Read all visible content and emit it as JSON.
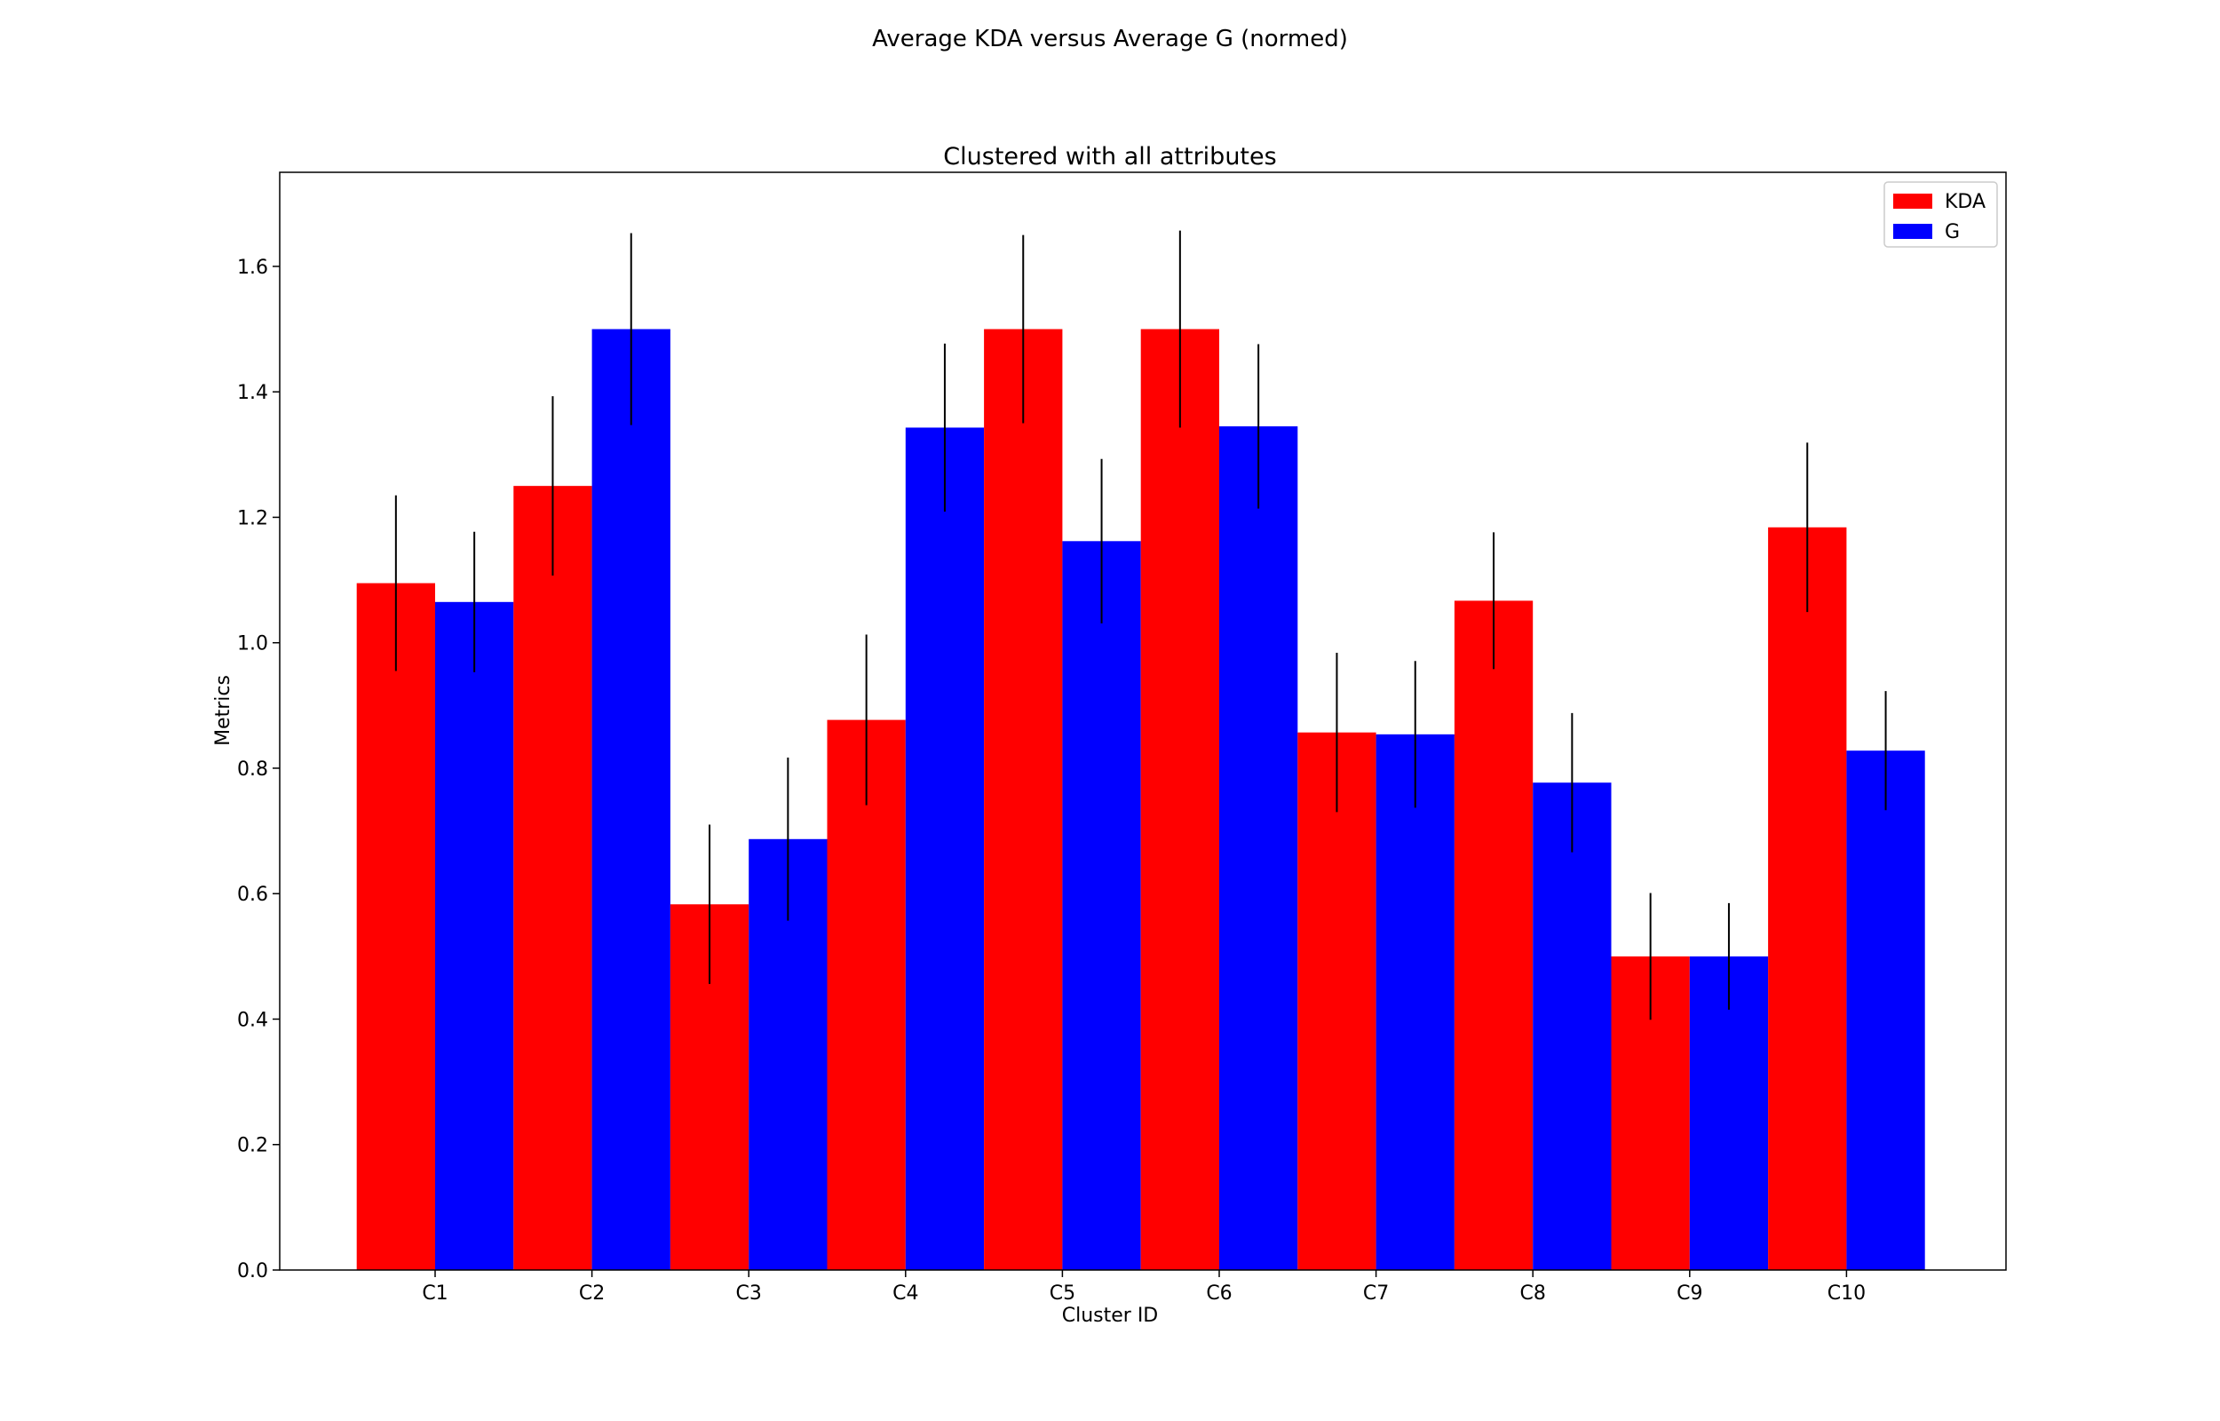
{
  "figure": {
    "suptitle": "Average KDA versus Average G (normed)"
  },
  "chart_data": {
    "type": "bar",
    "title": "Clustered with all attributes",
    "xlabel": "Cluster ID",
    "ylabel": "Metrics",
    "ylim": [
      0,
      1.75
    ],
    "yticks": [
      0.0,
      0.2,
      0.4,
      0.6,
      0.8,
      1.0,
      1.2,
      1.4,
      1.6
    ],
    "ytick_labels": [
      "0.0",
      "0.2",
      "0.4",
      "0.6",
      "0.8",
      "1.0",
      "1.2",
      "1.4",
      "1.6"
    ],
    "categories": [
      "C1",
      "C2",
      "C3",
      "C4",
      "C5",
      "C6",
      "C7",
      "C8",
      "C9",
      "C10"
    ],
    "grid": false,
    "legend_position": "top-right",
    "series": [
      {
        "name": "KDA",
        "color": "#ff0000",
        "values": [
          1.095,
          1.25,
          0.583,
          0.877,
          1.5,
          1.5,
          0.857,
          1.067,
          0.5,
          1.184
        ],
        "errors": [
          0.14,
          0.143,
          0.127,
          0.136,
          0.15,
          0.157,
          0.127,
          0.109,
          0.101,
          0.135
        ]
      },
      {
        "name": "G",
        "color": "#0000ff",
        "values": [
          1.065,
          1.5,
          0.687,
          1.343,
          1.162,
          1.345,
          0.854,
          0.777,
          0.5,
          0.828
        ],
        "errors": [
          0.112,
          0.153,
          0.13,
          0.134,
          0.131,
          0.131,
          0.117,
          0.111,
          0.085,
          0.095
        ]
      }
    ]
  }
}
